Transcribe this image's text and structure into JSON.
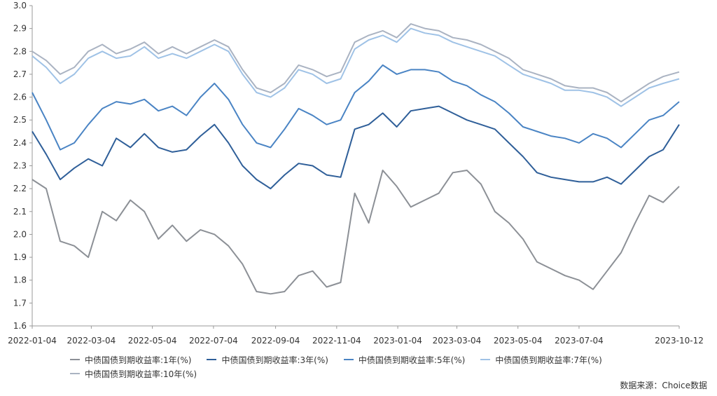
{
  "chart_data": {
    "type": "line",
    "title": "",
    "xlabel": "",
    "ylabel": "",
    "ylim": [
      1.6,
      3.0
    ],
    "yticks": [
      "1.6",
      "1.7",
      "1.8",
      "1.9",
      "2.0",
      "2.1",
      "2.2",
      "2.3",
      "2.4",
      "2.5",
      "2.6",
      "2.7",
      "2.8",
      "2.9",
      "3.0"
    ],
    "xticks": [
      "2022-01-04",
      "2022-03-04",
      "2022-05-04",
      "2022-07-04",
      "2022-09-04",
      "2022-11-04",
      "2023-01-04",
      "2023-03-04",
      "2023-05-04",
      "2023-07-04",
      "2023-10-12"
    ],
    "grid": false,
    "legend_position": "bottom",
    "x": [
      "2022-01-04",
      "2022-01-18",
      "2022-02-01",
      "2022-02-15",
      "2022-03-01",
      "2022-03-15",
      "2022-03-29",
      "2022-04-12",
      "2022-04-26",
      "2022-05-10",
      "2022-05-24",
      "2022-06-07",
      "2022-06-21",
      "2022-07-05",
      "2022-07-19",
      "2022-08-02",
      "2022-08-16",
      "2022-08-30",
      "2022-09-13",
      "2022-09-27",
      "2022-10-11",
      "2022-10-25",
      "2022-11-08",
      "2022-11-22",
      "2022-12-06",
      "2022-12-20",
      "2023-01-03",
      "2023-01-17",
      "2023-01-31",
      "2023-02-14",
      "2023-02-28",
      "2023-03-14",
      "2023-03-28",
      "2023-04-11",
      "2023-04-25",
      "2023-05-09",
      "2023-05-23",
      "2023-06-06",
      "2023-06-20",
      "2023-07-04",
      "2023-07-18",
      "2023-08-01",
      "2023-08-15",
      "2023-08-29",
      "2023-09-12",
      "2023-09-26",
      "2023-10-12"
    ],
    "series": [
      {
        "name": "中债国债到期收益率:1年(%)",
        "color": "#8c9096",
        "values": [
          2.24,
          2.2,
          1.97,
          1.95,
          1.9,
          2.1,
          2.06,
          2.15,
          2.1,
          1.98,
          2.04,
          1.97,
          2.02,
          2.0,
          1.95,
          1.87,
          1.75,
          1.74,
          1.75,
          1.82,
          1.84,
          1.77,
          1.79,
          2.18,
          2.05,
          2.28,
          2.21,
          2.12,
          2.15,
          2.18,
          2.27,
          2.28,
          2.22,
          2.1,
          2.05,
          1.98,
          1.88,
          1.85,
          1.82,
          1.8,
          1.76,
          1.84,
          1.92,
          2.05,
          2.17,
          2.14,
          2.21
        ]
      },
      {
        "name": "中债国债到期收益率:3年(%)",
        "color": "#2f5f99",
        "values": [
          2.45,
          2.35,
          2.24,
          2.29,
          2.33,
          2.3,
          2.42,
          2.38,
          2.44,
          2.38,
          2.36,
          2.37,
          2.43,
          2.48,
          2.4,
          2.3,
          2.24,
          2.2,
          2.26,
          2.31,
          2.3,
          2.26,
          2.25,
          2.46,
          2.48,
          2.53,
          2.47,
          2.54,
          2.55,
          2.56,
          2.53,
          2.5,
          2.48,
          2.46,
          2.4,
          2.34,
          2.27,
          2.25,
          2.24,
          2.23,
          2.23,
          2.25,
          2.22,
          2.28,
          2.34,
          2.37,
          2.48
        ]
      },
      {
        "name": "中债国债到期收益率:5年(%)",
        "color": "#4a84c4",
        "values": [
          2.62,
          2.5,
          2.37,
          2.4,
          2.48,
          2.55,
          2.58,
          2.57,
          2.59,
          2.54,
          2.56,
          2.52,
          2.6,
          2.66,
          2.59,
          2.48,
          2.4,
          2.38,
          2.46,
          2.55,
          2.52,
          2.48,
          2.5,
          2.62,
          2.67,
          2.74,
          2.7,
          2.72,
          2.72,
          2.71,
          2.67,
          2.65,
          2.61,
          2.58,
          2.53,
          2.47,
          2.45,
          2.43,
          2.42,
          2.4,
          2.44,
          2.42,
          2.38,
          2.44,
          2.5,
          2.52,
          2.58
        ]
      },
      {
        "name": "中债国债到期收益率:7年(%)",
        "color": "#9fc2e6",
        "values": [
          2.78,
          2.73,
          2.66,
          2.7,
          2.77,
          2.8,
          2.77,
          2.78,
          2.82,
          2.77,
          2.79,
          2.77,
          2.8,
          2.83,
          2.8,
          2.7,
          2.62,
          2.6,
          2.64,
          2.72,
          2.7,
          2.66,
          2.68,
          2.81,
          2.85,
          2.87,
          2.84,
          2.9,
          2.88,
          2.87,
          2.84,
          2.82,
          2.8,
          2.78,
          2.74,
          2.7,
          2.68,
          2.66,
          2.63,
          2.63,
          2.62,
          2.6,
          2.56,
          2.6,
          2.64,
          2.66,
          2.68
        ]
      },
      {
        "name": "中债国债到期收益率:10年(%)",
        "color": "#aab3c2",
        "values": [
          2.8,
          2.76,
          2.7,
          2.73,
          2.8,
          2.83,
          2.79,
          2.81,
          2.84,
          2.79,
          2.82,
          2.79,
          2.82,
          2.85,
          2.82,
          2.72,
          2.64,
          2.62,
          2.66,
          2.74,
          2.72,
          2.69,
          2.71,
          2.84,
          2.87,
          2.89,
          2.86,
          2.92,
          2.9,
          2.89,
          2.86,
          2.85,
          2.83,
          2.8,
          2.77,
          2.72,
          2.7,
          2.68,
          2.65,
          2.64,
          2.64,
          2.62,
          2.58,
          2.62,
          2.66,
          2.69,
          2.71
        ]
      }
    ]
  },
  "source_text": "数据来源：Choice数据"
}
